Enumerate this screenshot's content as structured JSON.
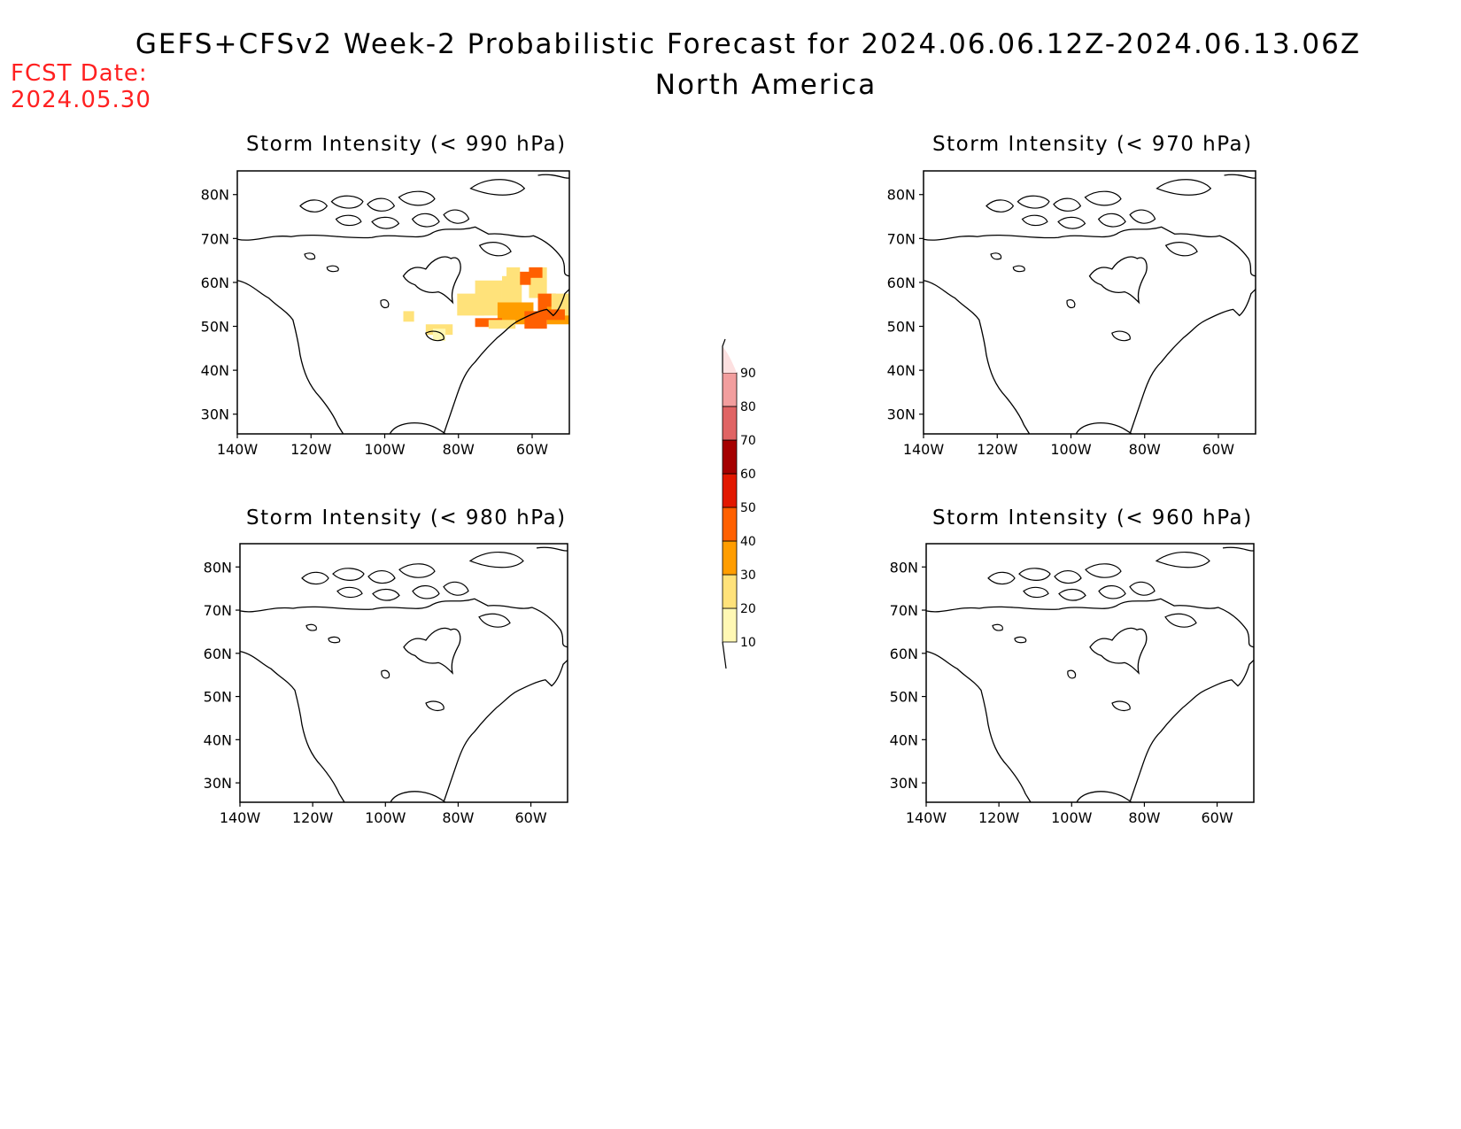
{
  "header": {
    "title": "GEFS+CFSv2 Week-2 Probabilistic Forecast for 2024.06.06.12Z-2024.06.13.06Z",
    "region": "North America",
    "fcst_label": "FCST Date:",
    "fcst_date": "2024.05.30",
    "fcst_color": "#ff2020"
  },
  "panels": [
    {
      "title": "Storm Intensity (< 990 hPa)",
      "has_shading": true
    },
    {
      "title": "Storm Intensity (< 970 hPa)",
      "has_shading": false
    },
    {
      "title": "Storm Intensity (< 980 hPa)",
      "has_shading": false
    },
    {
      "title": "Storm Intensity (< 960 hPa)",
      "has_shading": false
    }
  ],
  "axes": {
    "lat_ticks": [
      "80N",
      "70N",
      "60N",
      "50N",
      "40N",
      "30N"
    ],
    "lon_ticks": [
      "140W",
      "120W",
      "100W",
      "80W",
      "60W"
    ]
  },
  "colorbar": {
    "levels": [
      "10",
      "20",
      "30",
      "40",
      "50",
      "60",
      "70",
      "80",
      "90"
    ],
    "colors": [
      "#fff8b4",
      "#ffe27a",
      "#ff9d00",
      "#ff6000",
      "#e21800",
      "#a50000",
      "#e06464",
      "#f29e9e",
      "#fde0e0"
    ]
  }
}
